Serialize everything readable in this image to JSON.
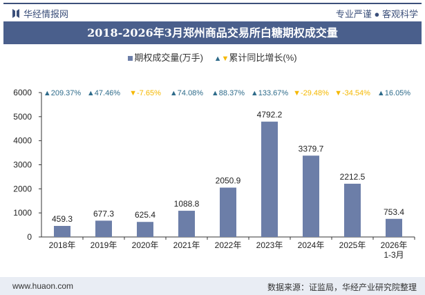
{
  "header": {
    "brand": "华经情报网",
    "slogan": "专业严谨 ● 客观科学"
  },
  "title": "2018-2026年3月郑州商品交易所白糖期权成交量",
  "footer": {
    "website": "www.huaon.com",
    "source": "数据来源：证监局，华经产业研究院整理"
  },
  "chart_data": {
    "type": "bar",
    "title": "2018-2026年3月郑州商品交易所白糖期权成交量",
    "categories": [
      "2018年",
      "2019年",
      "2020年",
      "2021年",
      "2022年",
      "2023年",
      "2024年",
      "2025年",
      "2026年\n1-3月"
    ],
    "series": [
      {
        "name": "期权成交量(万手)",
        "values": [
          459.3,
          677.3,
          625.4,
          1088.8,
          2050.9,
          4792.2,
          3379.7,
          2212.5,
          753.4
        ],
        "color": "#6c7ea8"
      },
      {
        "name": "累计同比增长(%)",
        "values": [
          209.37,
          47.46,
          -7.65,
          74.08,
          88.37,
          133.67,
          -29.48,
          -34.54,
          16.05
        ],
        "up_color": "#2e6b8a",
        "down_color": "#f5b800"
      }
    ],
    "value_labels": [
      "459.3",
      "677.3",
      "625.4",
      "1088.8",
      "2050.9",
      "4792.2",
      "3379.7",
      "2212.5",
      "753.4"
    ],
    "growth_labels": [
      "209.37%",
      "47.46%",
      "-7.65%",
      "74.08%",
      "88.37%",
      "133.67%",
      "-29.48%",
      "-34.54%",
      "16.05%"
    ],
    "yticks": [
      "0",
      "1000",
      "2000",
      "3000",
      "4000",
      "5000",
      "6000"
    ],
    "ylim": [
      0,
      6000
    ],
    "grid": false,
    "legend": "top"
  }
}
